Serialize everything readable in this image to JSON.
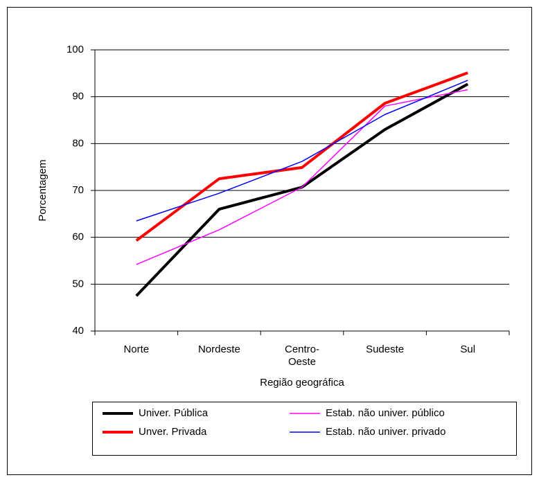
{
  "chart_data": {
    "type": "line",
    "x_label": "Região geográfica",
    "y_label": "Porcentagem",
    "categories": [
      "Norte",
      "Nordeste",
      "Centro-\nOeste",
      "Sudeste",
      "Sul"
    ],
    "series": [
      {
        "name": "Univer. Pública",
        "color": "#000000",
        "line_width": 4,
        "values": [
          47.5,
          66,
          70.7,
          83,
          92.7
        ]
      },
      {
        "name": "Unver. Privada",
        "color": "#ff0000",
        "line_width": 4,
        "values": [
          59.3,
          72.5,
          74.9,
          88.6,
          95.1
        ]
      },
      {
        "name": "Estab. não univer. público",
        "color": "#ff00ff",
        "line_width": 1.5,
        "values": [
          54.2,
          61.6,
          70.7,
          88,
          91.5
        ]
      },
      {
        "name": "Estab. não univer. privado",
        "color": "#0000ff",
        "line_width": 1.5,
        "values": [
          63.5,
          69.4,
          76.2,
          86.2,
          93.5
        ]
      }
    ],
    "ylim": [
      40,
      100
    ],
    "yticks": [
      40,
      50,
      60,
      70,
      80,
      90,
      100
    ],
    "grid": true,
    "legend": "bottom"
  }
}
